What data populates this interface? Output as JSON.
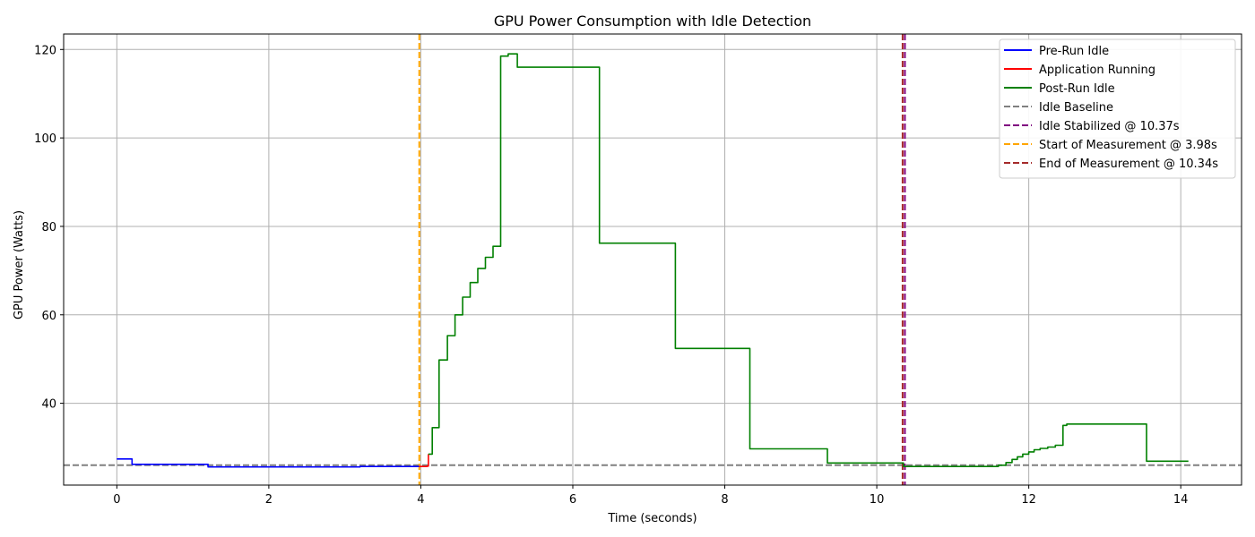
{
  "chart_data": {
    "type": "line",
    "title": "GPU Power Consumption with Idle Detection",
    "xlabel": "Time (seconds)",
    "ylabel": "GPU Power (Watts)",
    "xlim": [
      -0.7,
      14.8
    ],
    "ylim": [
      21.5,
      123.5
    ],
    "xticks": [
      0,
      2,
      4,
      6,
      8,
      10,
      12,
      14
    ],
    "yticks": [
      40,
      60,
      80,
      100,
      120
    ],
    "grid": true,
    "legend_position": "top-right",
    "series": [
      {
        "name": "Pre-Run Idle",
        "color": "#0000ff",
        "step": true,
        "x": [
          0.0,
          0.2,
          1.2,
          3.2,
          3.98
        ],
        "y": [
          27.4,
          26.2,
          25.6,
          25.7,
          25.7
        ]
      },
      {
        "name": "Application Running",
        "color": "#ff0000",
        "step": true,
        "x": [
          3.98,
          4.08,
          4.1
        ],
        "y": [
          25.7,
          25.8,
          28.5
        ]
      },
      {
        "name": "Post-Run Idle",
        "color": "#008000",
        "step": true,
        "x": [
          4.1,
          4.15,
          4.24,
          4.35,
          4.45,
          4.55,
          4.65,
          4.75,
          4.85,
          4.95,
          5.05,
          5.15,
          5.22,
          5.27,
          6.35,
          7.35,
          8.33,
          9.35,
          10.35,
          11.55,
          11.6,
          11.7,
          11.78,
          11.85,
          11.92,
          12.0,
          12.07,
          12.15,
          12.25,
          12.35,
          12.45,
          12.5,
          12.55,
          13.55,
          14.1
        ],
        "y": [
          28.5,
          34.5,
          49.8,
          55.3,
          60.0,
          64.0,
          67.3,
          70.5,
          73.0,
          75.5,
          118.5,
          119.0,
          119.0,
          116.0,
          76.2,
          52.4,
          29.7,
          26.5,
          25.7,
          25.7,
          26.0,
          26.6,
          27.3,
          27.9,
          28.5,
          29.0,
          29.5,
          29.8,
          30.1,
          30.5,
          35.0,
          35.3,
          35.3,
          26.9,
          26.9
        ]
      }
    ],
    "reference_lines": [
      {
        "name": "Idle Baseline",
        "orientation": "horizontal",
        "value": 26.0,
        "color": "#808080"
      },
      {
        "name": "Idle Stabilized @ 10.37s",
        "orientation": "vertical",
        "value": 10.37,
        "color": "#800080"
      },
      {
        "name": "Start of Measurement @ 3.98s",
        "orientation": "vertical",
        "value": 3.98,
        "color": "#ffa500"
      },
      {
        "name": "End of Measurement @ 10.34s",
        "orientation": "vertical",
        "value": 10.34,
        "color": "#a52a2a"
      }
    ],
    "legend_entries": [
      {
        "label": "Pre-Run Idle",
        "color": "#0000ff",
        "style": "solid"
      },
      {
        "label": "Application Running",
        "color": "#ff0000",
        "style": "solid"
      },
      {
        "label": "Post-Run Idle",
        "color": "#008000",
        "style": "solid"
      },
      {
        "label": "Idle Baseline",
        "color": "#808080",
        "style": "dashed"
      },
      {
        "label": "Idle Stabilized @ 10.37s",
        "color": "#800080",
        "style": "dashed"
      },
      {
        "label": "Start of Measurement @ 3.98s",
        "color": "#ffa500",
        "style": "dashed"
      },
      {
        "label": "End of Measurement @ 10.34s",
        "color": "#a52a2a",
        "style": "dashed"
      }
    ]
  }
}
